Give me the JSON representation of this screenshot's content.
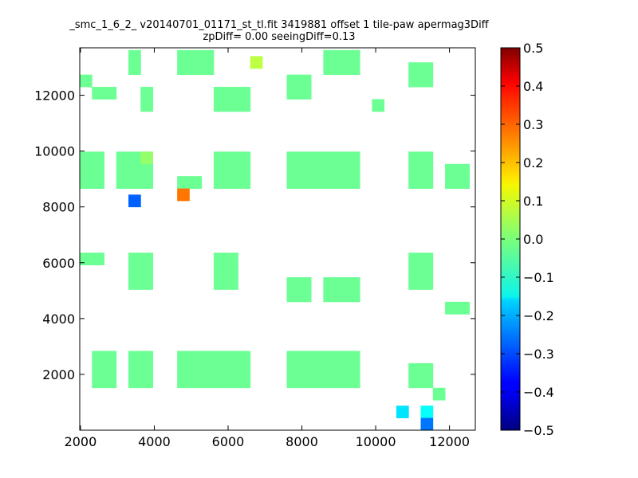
{
  "chart_data": {
    "type": "heatmap",
    "title": "_smc_1_6_2_ v20140701_01171_st_tl.fit 3419881 offset 1 tile-paw apermag3Diff",
    "subtitle": "zpDiff= 0.00 seeingDiff=0.13",
    "xlabel": "",
    "ylabel": "",
    "xlim": [
      1980,
      12700
    ],
    "ylim": [
      0,
      13700
    ],
    "xticks": [
      2000,
      4000,
      6000,
      8000,
      10000,
      12000
    ],
    "yticks": [
      2000,
      4000,
      6000,
      8000,
      10000,
      12000
    ],
    "grid": false,
    "cell_width": 330,
    "cell_height": 440,
    "colorbar": {
      "colormap": "jet",
      "vmin": -0.5,
      "vmax": 0.5,
      "ticks": [
        0.5,
        0.4,
        0.3,
        0.2,
        0.1,
        0.0,
        -0.1,
        -0.2,
        -0.3,
        -0.4,
        -0.5
      ],
      "tick_labels": [
        "0.5",
        "0.4",
        "0.3",
        "0.2",
        "0.1",
        "0.0",
        "−0.1",
        "−0.2",
        "−0.3",
        "−0.4",
        "−0.5"
      ]
    },
    "default_value": -0.02,
    "tiles": [
      {
        "x0": 1980,
        "y0": 12300,
        "cols": 1,
        "rows": 1
      },
      {
        "x0": 2310,
        "y0": 11860,
        "cols": 2,
        "rows": 1
      },
      {
        "x0": 3300,
        "y0": 12740,
        "cols": 1,
        "rows": 2
      },
      {
        "x0": 3630,
        "y0": 11420,
        "cols": 1,
        "rows": 2
      },
      {
        "x0": 4620,
        "y0": 12740,
        "cols": 3,
        "rows": 2
      },
      {
        "x0": 5610,
        "y0": 11420,
        "cols": 3,
        "rows": 2
      },
      {
        "x0": 7590,
        "y0": 11860,
        "cols": 2,
        "rows": 2
      },
      {
        "x0": 8580,
        "y0": 12740,
        "cols": 3,
        "rows": 2
      },
      {
        "x0": 9900,
        "y0": 11420,
        "cols": 1,
        "rows": 1
      },
      {
        "x0": 10890,
        "y0": 12300,
        "cols": 2,
        "rows": 2
      },
      {
        "x0": 1980,
        "y0": 8660,
        "cols": 2,
        "rows": 3
      },
      {
        "x0": 2970,
        "y0": 8660,
        "cols": 3,
        "rows": 3
      },
      {
        "x0": 4620,
        "y0": 8660,
        "cols": 2,
        "rows": 1
      },
      {
        "x0": 5610,
        "y0": 8660,
        "cols": 3,
        "rows": 3
      },
      {
        "x0": 7590,
        "y0": 8660,
        "cols": 3,
        "rows": 3
      },
      {
        "x0": 8580,
        "y0": 8660,
        "cols": 3,
        "rows": 3
      },
      {
        "x0": 10890,
        "y0": 8660,
        "cols": 2,
        "rows": 3
      },
      {
        "x0": 11880,
        "y0": 8660,
        "cols": 2,
        "rows": 2
      },
      {
        "x0": 1980,
        "y0": 5920,
        "cols": 2,
        "rows": 1
      },
      {
        "x0": 3300,
        "y0": 5040,
        "cols": 2,
        "rows": 3
      },
      {
        "x0": 5610,
        "y0": 5040,
        "cols": 2,
        "rows": 3
      },
      {
        "x0": 7590,
        "y0": 4600,
        "cols": 2,
        "rows": 2
      },
      {
        "x0": 8580,
        "y0": 4600,
        "cols": 3,
        "rows": 2
      },
      {
        "x0": 10890,
        "y0": 5040,
        "cols": 2,
        "rows": 3
      },
      {
        "x0": 11880,
        "y0": 4160,
        "cols": 2,
        "rows": 1
      },
      {
        "x0": 2310,
        "y0": 1520,
        "cols": 2,
        "rows": 3
      },
      {
        "x0": 3300,
        "y0": 1520,
        "cols": 2,
        "rows": 3
      },
      {
        "x0": 4620,
        "y0": 1520,
        "cols": 3,
        "rows": 3
      },
      {
        "x0": 5610,
        "y0": 1520,
        "cols": 3,
        "rows": 3
      },
      {
        "x0": 7590,
        "y0": 1520,
        "cols": 3,
        "rows": 3
      },
      {
        "x0": 8580,
        "y0": 1520,
        "cols": 3,
        "rows": 3
      },
      {
        "x0": 10890,
        "y0": 1520,
        "cols": 2,
        "rows": 2
      },
      {
        "x0": 11550,
        "y0": 1080,
        "cols": 1,
        "rows": 1
      }
    ],
    "cells": [
      {
        "x0": 3300,
        "y0": 8000,
        "value": -0.28
      },
      {
        "x0": 4620,
        "y0": 8220,
        "value": 0.26
      },
      {
        "x0": 10560,
        "y0": 440,
        "value": -0.15
      },
      {
        "x0": 11220,
        "y0": 440,
        "value": -0.12
      },
      {
        "x0": 11220,
        "y0": 0,
        "value": -0.26
      },
      {
        "x0": 6600,
        "y0": 12960,
        "value": 0.06
      },
      {
        "x0": 3630,
        "y0": 9540,
        "value": 0.02
      }
    ]
  }
}
